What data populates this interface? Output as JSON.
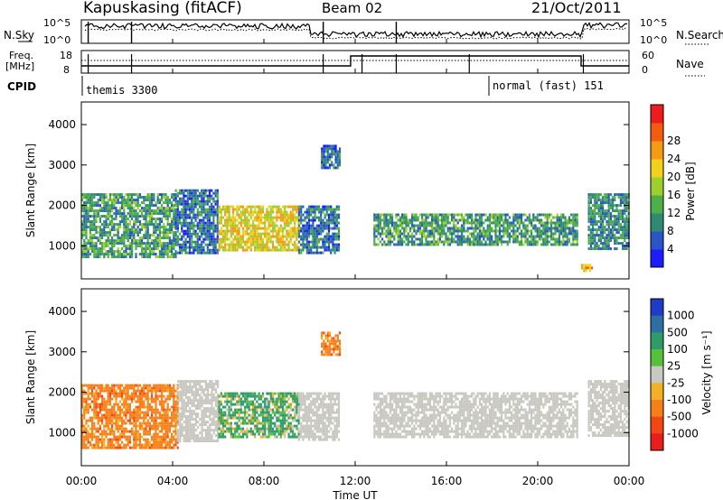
{
  "header": {
    "station": "Kapuskasing (fitACF)",
    "beam": "Beam 02",
    "date": "21/Oct/2011"
  },
  "top_panels": {
    "nsky_label": "N.Sky",
    "nsearch_label": "N.Search",
    "noise_ticks_left": [
      "10^5",
      "10^0"
    ],
    "noise_ticks_right": [
      "10^5",
      "10^0"
    ],
    "freq_label_1": "Freq.",
    "freq_label_2": "[MHz]",
    "freq_ticks": [
      "18",
      "8"
    ],
    "nave_label": "Nave",
    "nave_ticks": [
      "60",
      "0"
    ],
    "cpid_label": "CPID",
    "cpid_1": "themis 3300",
    "cpid_2": "normal (fast) 151"
  },
  "axes": {
    "x_ticks": [
      "00:00",
      "04:00",
      "08:00",
      "12:00",
      "16:00",
      "20:00",
      "00:00"
    ],
    "x_label": "Time UT",
    "y_label": "Slant Range [km]",
    "y_ticks": [
      "1000",
      "2000",
      "3000",
      "4000"
    ]
  },
  "colorbars": {
    "power": {
      "label": "Power [dB]",
      "ticks": [
        "4",
        "8",
        "12",
        "16",
        "20",
        "24",
        "28"
      ],
      "colors": [
        "#1c1cff",
        "#2a55c8",
        "#2f8a74",
        "#4eaf48",
        "#9ecf2e",
        "#f0d21e",
        "#f59a14",
        "#f35c0e",
        "#ee1c1c"
      ]
    },
    "velocity": {
      "label": "Velocity [m s⁻¹]",
      "ticks": [
        "1000",
        "500",
        "100",
        "25",
        "-25",
        "-100",
        "-500",
        "-1000"
      ],
      "colors": [
        "#1e3cc8",
        "#2e6ea0",
        "#2f9a6a",
        "#55c038",
        "#c8c8c0",
        "#f2b024",
        "#f5801a",
        "#f24614",
        "#e81e1e"
      ]
    }
  },
  "chart_data": [
    {
      "type": "heatmap",
      "name": "power",
      "xlabel": "Time UT",
      "ylabel": "Slant Range [km]",
      "xlim": [
        0,
        24
      ],
      "ylim": [
        180,
        4560
      ],
      "x_unit": "hours UT",
      "colorbar_label": "Power [dB]",
      "bands": [
        {
          "t_start": 0.0,
          "t_end": 4.1,
          "range_low": 700,
          "range_high": 2300,
          "power_db": 12
        },
        {
          "t_start": 4.1,
          "t_end": 6.0,
          "range_low": 800,
          "range_high": 2400,
          "power_db": 8
        },
        {
          "t_start": 6.0,
          "t_end": 9.5,
          "range_low": 900,
          "range_high": 2000,
          "power_db": 22
        },
        {
          "t_start": 9.5,
          "t_end": 11.3,
          "range_low": 800,
          "range_high": 2000,
          "power_db": 8
        },
        {
          "t_start": 10.5,
          "t_end": 11.3,
          "range_low": 2900,
          "range_high": 3500,
          "power_db": 8
        },
        {
          "t_start": 12.8,
          "t_end": 21.7,
          "range_low": 1000,
          "range_high": 1800,
          "power_db": 12
        },
        {
          "t_start": 21.9,
          "t_end": 22.4,
          "range_low": 400,
          "range_high": 550,
          "power_db": 24
        },
        {
          "t_start": 22.2,
          "t_end": 24.0,
          "range_low": 900,
          "range_high": 2300,
          "power_db": 10
        }
      ]
    },
    {
      "type": "heatmap",
      "name": "velocity",
      "xlabel": "Time UT",
      "ylabel": "Slant Range [km]",
      "xlim": [
        0,
        24
      ],
      "ylim": [
        180,
        4560
      ],
      "x_unit": "hours UT",
      "colorbar_label": "Velocity [m s⁻¹]",
      "bands": [
        {
          "t_start": 0.0,
          "t_end": 4.2,
          "range_low": 600,
          "range_high": 2200,
          "velocity": -300
        },
        {
          "t_start": 4.2,
          "t_end": 6.0,
          "range_low": 800,
          "range_high": 2300,
          "velocity": 0
        },
        {
          "t_start": 6.0,
          "t_end": 9.5,
          "range_low": 900,
          "range_high": 2000,
          "velocity": 150
        },
        {
          "t_start": 9.5,
          "t_end": 11.3,
          "range_low": 800,
          "range_high": 2000,
          "velocity": 0
        },
        {
          "t_start": 10.5,
          "t_end": 11.3,
          "range_low": 2900,
          "range_high": 3500,
          "velocity": -300
        },
        {
          "t_start": 12.8,
          "t_end": 21.7,
          "range_low": 900,
          "range_high": 2000,
          "velocity": 0
        },
        {
          "t_start": 22.2,
          "t_end": 24.0,
          "range_low": 900,
          "range_high": 2300,
          "velocity": 0
        }
      ]
    }
  ]
}
